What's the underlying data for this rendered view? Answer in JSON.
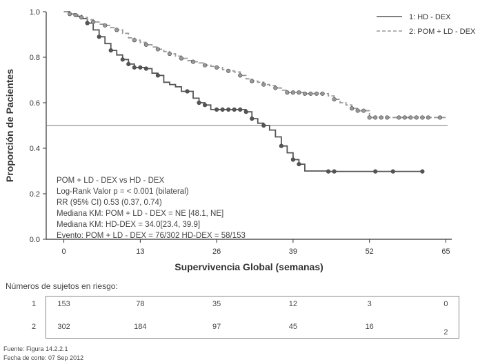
{
  "chart_data": {
    "type": "line",
    "subtype": "kaplan-meier",
    "xlabel": "Supervivencia Global (semanas)",
    "ylabel": "Proporción de Pacientes",
    "xlim": [
      -3,
      66
    ],
    "ylim": [
      0,
      1.0
    ],
    "xticks": [
      0,
      13,
      26,
      39,
      52,
      65
    ],
    "yticks": [
      0.0,
      0.2,
      0.4,
      0.6,
      0.8,
      1.0
    ],
    "ytick_labels": [
      "0.0",
      "0.2",
      "0.4",
      "0.6",
      "0.8",
      "1.0"
    ],
    "reference_line_y": 0.5,
    "legend_position": "top-right",
    "series": [
      {
        "name": "1: HD - DEX",
        "style": "solid",
        "color": "#555555",
        "steps": [
          [
            0,
            1.0
          ],
          [
            1,
            0.99
          ],
          [
            2,
            0.98
          ],
          [
            3,
            0.97
          ],
          [
            4,
            0.95
          ],
          [
            5,
            0.92
          ],
          [
            6,
            0.89
          ],
          [
            7,
            0.86
          ],
          [
            8,
            0.83
          ],
          [
            9,
            0.81
          ],
          [
            10,
            0.79
          ],
          [
            11,
            0.77
          ],
          [
            12,
            0.755
          ],
          [
            14,
            0.75
          ],
          [
            15,
            0.73
          ],
          [
            16,
            0.72
          ],
          [
            17,
            0.69
          ],
          [
            18,
            0.68
          ],
          [
            19,
            0.67
          ],
          [
            20,
            0.65
          ],
          [
            22,
            0.62
          ],
          [
            23,
            0.6
          ],
          [
            24,
            0.59
          ],
          [
            25,
            0.57
          ],
          [
            31,
            0.56
          ],
          [
            32,
            0.53
          ],
          [
            33,
            0.51
          ],
          [
            34,
            0.5
          ],
          [
            35,
            0.48
          ],
          [
            36,
            0.45
          ],
          [
            37,
            0.41
          ],
          [
            38,
            0.38
          ],
          [
            39,
            0.35
          ],
          [
            40,
            0.33
          ],
          [
            41,
            0.3
          ],
          [
            44,
            0.3
          ],
          [
            45,
            0.298
          ],
          [
            61,
            0.298
          ]
        ],
        "censored": [
          [
            4,
            0.95
          ],
          [
            6,
            0.89
          ],
          [
            8,
            0.83
          ],
          [
            10,
            0.79
          ],
          [
            11,
            0.77
          ],
          [
            12,
            0.755
          ],
          [
            13,
            0.755
          ],
          [
            14,
            0.75
          ],
          [
            16,
            0.72
          ],
          [
            21,
            0.65
          ],
          [
            23,
            0.6
          ],
          [
            24,
            0.59
          ],
          [
            26,
            0.57
          ],
          [
            27,
            0.57
          ],
          [
            28,
            0.57
          ],
          [
            29,
            0.57
          ],
          [
            30,
            0.57
          ],
          [
            31,
            0.56
          ],
          [
            32,
            0.53
          ],
          [
            34,
            0.5
          ],
          [
            37,
            0.41
          ],
          [
            39,
            0.35
          ],
          [
            40,
            0.33
          ],
          [
            45,
            0.298
          ],
          [
            46,
            0.298
          ],
          [
            53,
            0.298
          ],
          [
            56,
            0.298
          ],
          [
            61,
            0.298
          ]
        ]
      },
      {
        "name": "2: POM + LD - DEX",
        "style": "dashed",
        "color": "#999999",
        "steps": [
          [
            0,
            1.0
          ],
          [
            1,
            0.99
          ],
          [
            2,
            0.985
          ],
          [
            3,
            0.975
          ],
          [
            4,
            0.965
          ],
          [
            5,
            0.955
          ],
          [
            6,
            0.945
          ],
          [
            7,
            0.94
          ],
          [
            8,
            0.93
          ],
          [
            9,
            0.92
          ],
          [
            10,
            0.905
          ],
          [
            11,
            0.885
          ],
          [
            12,
            0.875
          ],
          [
            13,
            0.865
          ],
          [
            14,
            0.855
          ],
          [
            15,
            0.845
          ],
          [
            16,
            0.835
          ],
          [
            17,
            0.825
          ],
          [
            18,
            0.815
          ],
          [
            19,
            0.805
          ],
          [
            20,
            0.795
          ],
          [
            21,
            0.785
          ],
          [
            22,
            0.78
          ],
          [
            23,
            0.775
          ],
          [
            24,
            0.765
          ],
          [
            25,
            0.76
          ],
          [
            26,
            0.755
          ],
          [
            27,
            0.745
          ],
          [
            28,
            0.74
          ],
          [
            29,
            0.735
          ],
          [
            30,
            0.72
          ],
          [
            31,
            0.705
          ],
          [
            32,
            0.695
          ],
          [
            33,
            0.69
          ],
          [
            34,
            0.68
          ],
          [
            35,
            0.675
          ],
          [
            36,
            0.665
          ],
          [
            37,
            0.655
          ],
          [
            38,
            0.645
          ],
          [
            41,
            0.64
          ],
          [
            45,
            0.63
          ],
          [
            46,
            0.615
          ],
          [
            47,
            0.6
          ],
          [
            48,
            0.59
          ],
          [
            49,
            0.575
          ],
          [
            50,
            0.565
          ],
          [
            51,
            0.565
          ],
          [
            52,
            0.535
          ],
          [
            65,
            0.535
          ]
        ],
        "censored": [
          [
            1,
            0.99
          ],
          [
            2,
            0.985
          ],
          [
            3,
            0.975
          ],
          [
            5,
            0.955
          ],
          [
            7,
            0.94
          ],
          [
            9,
            0.92
          ],
          [
            12,
            0.875
          ],
          [
            14,
            0.855
          ],
          [
            16,
            0.835
          ],
          [
            18,
            0.815
          ],
          [
            20,
            0.795
          ],
          [
            22,
            0.78
          ],
          [
            24,
            0.765
          ],
          [
            26,
            0.755
          ],
          [
            28,
            0.74
          ],
          [
            30,
            0.72
          ],
          [
            32,
            0.695
          ],
          [
            34,
            0.68
          ],
          [
            36,
            0.665
          ],
          [
            38,
            0.645
          ],
          [
            39,
            0.645
          ],
          [
            40,
            0.645
          ],
          [
            41,
            0.64
          ],
          [
            42,
            0.64
          ],
          [
            43,
            0.64
          ],
          [
            44,
            0.64
          ],
          [
            46,
            0.615
          ],
          [
            49,
            0.575
          ],
          [
            50,
            0.565
          ],
          [
            51,
            0.565
          ],
          [
            52,
            0.535
          ],
          [
            53,
            0.535
          ],
          [
            54,
            0.535
          ],
          [
            55,
            0.535
          ],
          [
            57,
            0.535
          ],
          [
            58,
            0.535
          ],
          [
            59,
            0.535
          ],
          [
            60,
            0.535
          ],
          [
            61,
            0.535
          ],
          [
            62,
            0.535
          ],
          [
            64,
            0.535
          ]
        ]
      }
    ],
    "annotations": [
      "POM + LD - DEX vs HD - DEX",
      "Log-Rank Valor p = < 0.001 (bilateral)",
      "RR (95% CI) 0.53 (0.37, 0.74)",
      "Mediana KM: POM + LD - DEX = NE [48.1, NE]",
      "Mediana KM: HD-DEX =  34.0[23.4, 39.9]",
      "Evento: POM + LD - DEX = 76/302 HD-DEX = 58/153"
    ]
  },
  "risk_table": {
    "title": "Números de sujetos en riesgo:",
    "rows": [
      {
        "label": "1",
        "values": [
          "153",
          "78",
          "35",
          "12",
          "3",
          "0"
        ]
      },
      {
        "label": "2",
        "values": [
          "302",
          "184",
          "97",
          "45",
          "16",
          "2"
        ]
      }
    ]
  },
  "footnotes": {
    "source": "Fuente: Figura 14.2.2.1",
    "cutoff": "Fecha de corte: 07 Sep 2012"
  }
}
